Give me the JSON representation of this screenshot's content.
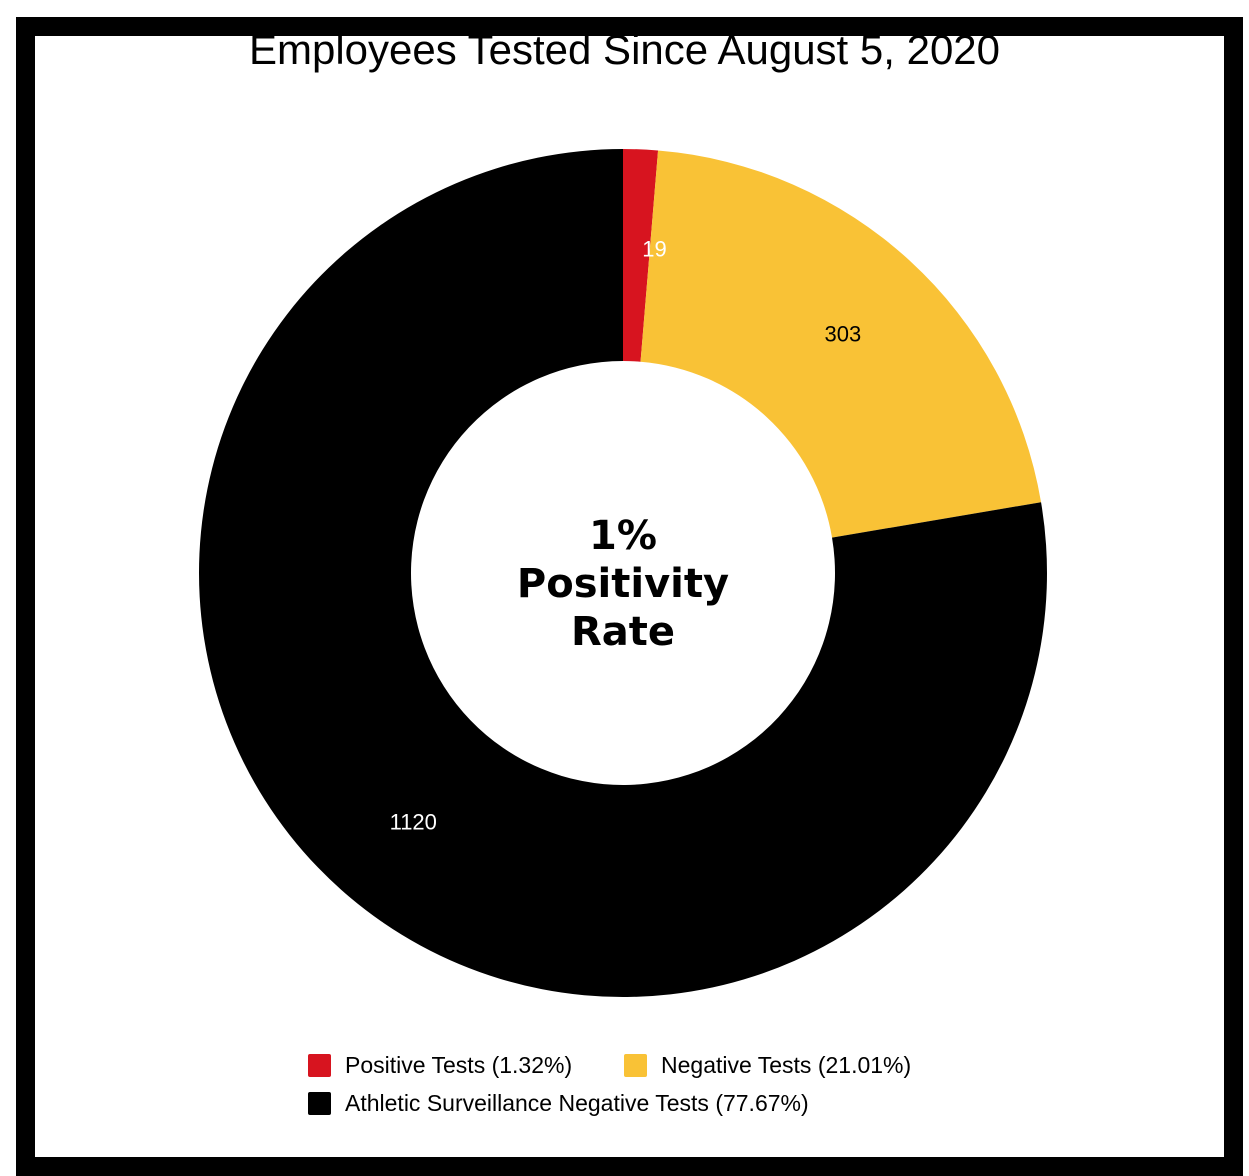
{
  "chart_data": {
    "type": "pie",
    "variant": "donut",
    "title": "Employees Tested Since August 5, 2020",
    "center_text": [
      "1%",
      "Positivity",
      "Rate"
    ],
    "slices": [
      {
        "label": "Positive Tests (1.32%)",
        "value": 19,
        "data_label": "19",
        "color": "#d7141f",
        "label_color": "#ffffff"
      },
      {
        "label": "Negative Tests (21.01%)",
        "value": 303,
        "data_label": "303",
        "color": "#f9c236",
        "label_color": "#000000"
      },
      {
        "label": "Athletic Surveillance Negative Tests (77.67%)",
        "value": 1120,
        "data_label": "1120",
        "color": "#000000",
        "label_color": "#ffffff"
      }
    ],
    "legend_position": "bottom"
  }
}
